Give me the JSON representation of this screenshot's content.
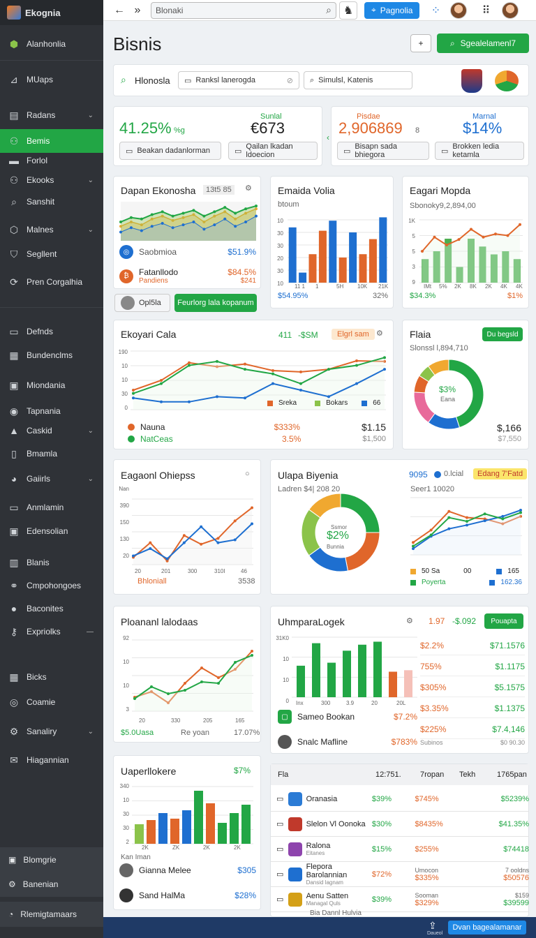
{
  "app": {
    "title": "Ekognia"
  },
  "sidebar": {
    "header": "Alanhonlia",
    "items": [
      {
        "label": "MUaps",
        "icon": "compass-icon",
        "y": 97
      },
      {
        "label": "Radans",
        "icon": "chart-icon",
        "y": 148,
        "chev": true
      },
      {
        "label": "Bemis",
        "icon": "people-icon",
        "y": 185,
        "active": true
      },
      {
        "label": "Forlol",
        "icon": "folder-icon",
        "y": 213
      },
      {
        "label": "Ekooks",
        "icon": "users-icon",
        "y": 241,
        "chev": true
      },
      {
        "label": "Sanshit",
        "icon": "search-icon",
        "y": 272
      },
      {
        "label": "Malnes",
        "icon": "box-icon",
        "y": 312,
        "chev": true
      },
      {
        "label": "Segllent",
        "icon": "shield-icon",
        "y": 347
      },
      {
        "label": "Pren Corgalhia",
        "icon": "refresh-icon",
        "y": 387
      },
      {
        "label": "Defnds",
        "icon": "card-icon",
        "y": 458
      },
      {
        "label": "Bundenclms",
        "icon": "grid-icon",
        "y": 492
      },
      {
        "label": "Miondania",
        "icon": "monitor-icon",
        "y": 535
      },
      {
        "label": "Tapnania",
        "icon": "chrome-icon",
        "y": 572
      },
      {
        "label": "Caskid",
        "icon": "warning-icon",
        "y": 600,
        "chev": true
      },
      {
        "label": "Bmamla",
        "icon": "doc-icon",
        "y": 633
      },
      {
        "label": "Gaiirls",
        "icon": "avatar-icon",
        "y": 669,
        "chev": true
      },
      {
        "label": "Anmlamin",
        "icon": "card-icon",
        "y": 710
      },
      {
        "label": "Edensolian",
        "icon": "monitor-icon",
        "y": 744
      },
      {
        "label": "Blanis",
        "icon": "bars-icon",
        "y": 789
      },
      {
        "label": "Cmpohongoes",
        "icon": "link-icon",
        "y": 822
      },
      {
        "label": "Baconites",
        "icon": "pin-icon",
        "y": 855
      },
      {
        "label": "Expriolks",
        "icon": "key-icon",
        "y": 888,
        "minus": true
      },
      {
        "label": "Bicks",
        "icon": "grid-icon",
        "y": 953
      },
      {
        "label": "Coamie",
        "icon": "target-icon",
        "y": 989
      },
      {
        "label": "Sanaliry",
        "icon": "gear-icon",
        "y": 1031,
        "chev": true
      },
      {
        "label": "Hiagannian",
        "icon": "mail-icon",
        "y": 1072
      }
    ],
    "bottom": [
      {
        "label": "Blomgrie",
        "y": 1232
      },
      {
        "label": "Banenian",
        "y": 1267
      },
      {
        "label": "Rlemigtamaars",
        "y": 1310
      }
    ]
  },
  "topbar": {
    "search": "Blonaki",
    "pill": "Pagnolia"
  },
  "page": {
    "title": "Bisnis",
    "action": "Sgealelamenl7"
  },
  "filters": {
    "country": "Hlonosla",
    "f1": "Ranksl lanerogda",
    "f2": "Simulsl, Katenis"
  },
  "kpis": {
    "k1": "41.25%",
    "k1b": "%g",
    "k2lab": "Sunlal",
    "k2": "€673",
    "b1": "Beakan dadanlorman",
    "b2": "Qailan lkadan ldoecion",
    "k3lab": "Pisdae",
    "k3": "2,906869",
    "k3b": "8",
    "k4lab": "Marnal",
    "k4": "$14%",
    "b3": "Bisapn sada bhiegora",
    "b4": "Brokken ledia ketamla"
  },
  "p1": {
    "title": "Dapan Ekonosha",
    "tag": "13t5 85",
    "r1": "Saobmioa",
    "r1v": "$51.9%",
    "r2": "Fatanllodo",
    "r2s": "Pandiens",
    "r2v": "$84.5%",
    "r2v2": "$241",
    "chip": "Opl5la",
    "btn": "Feurlorg lala kopanum"
  },
  "p2": {
    "title": "Emaida Volia",
    "sub": "btoum",
    "f1": "$54.95%",
    "f2": "32%",
    "yt": [
      "10",
      "30",
      "30",
      "20",
      "30",
      "10"
    ],
    "xt": [
      "11 1",
      "1",
      "5H",
      "10K",
      "21K"
    ],
    "chart_data": {
      "type": "bar",
      "categories": [
        "1",
        "2",
        "3",
        "4",
        "5",
        "6",
        "7",
        "8",
        "9",
        "10"
      ],
      "values": [
        66,
        12,
        34,
        62,
        74,
        30,
        60,
        34,
        52,
        78
      ],
      "colors": [
        "#1e6fd0",
        "#1e6fd0",
        "#e0662a",
        "#e0662a",
        "#1e6fd0",
        "#e0662a",
        "#1e6fd0",
        "#e0662a",
        "#e0662a",
        "#1e6fd0"
      ]
    }
  },
  "p3": {
    "title": "Eagari Mopda",
    "sub": "Sbonoky9,2,894,00",
    "f1": "$34.3%",
    "f2": "$1%",
    "xt": [
      "IMt",
      "5%",
      "2K",
      "8K",
      "2K",
      "4K",
      "4K"
    ],
    "yt": [
      "1K",
      "5",
      "5",
      "3",
      "9"
    ],
    "chart_data": {
      "type": "bar",
      "values": [
        30,
        40,
        56,
        20,
        56,
        46,
        36,
        40,
        30
      ],
      "line": [
        40,
        58,
        48,
        55,
        68,
        58,
        62,
        60,
        74
      ]
    }
  },
  "p4": {
    "title": "Ekoyari Cala",
    "v1": "411",
    "v2": "-$SM",
    "badge": "Elgrl sam",
    "yt": [
      "190",
      "10",
      "10",
      "30",
      "0"
    ],
    "leg": [
      "Sreka",
      "Bokars",
      "66"
    ],
    "r1": "Nauna",
    "r1v": "$333%",
    "r1v2": "$1.15",
    "r2": "NatCeas",
    "r2v": "3.5%",
    "r2v2": "$1,500",
    "chart_data": {
      "type": "line",
      "series": [
        {
          "name": "s1",
          "color": "#e0662a",
          "values": [
            30,
            45,
            72,
            66,
            70,
            60,
            58,
            62,
            75,
            74
          ]
        },
        {
          "name": "s2",
          "color": "#22a645",
          "values": [
            25,
            40,
            68,
            74,
            62,
            55,
            40,
            62,
            68,
            80
          ]
        },
        {
          "name": "s3",
          "color": "#1e6fd0",
          "values": [
            18,
            12,
            12,
            20,
            18,
            40,
            30,
            20,
            40,
            62
          ]
        }
      ]
    }
  },
  "p5": {
    "title": "Flaia",
    "btn": "Du begsld",
    "sub": "Slonssl l,894,710",
    "center": "$3%",
    "center2": "Eana",
    "v": "$,166",
    "v2": "$7,550",
    "chart_data": {
      "type": "pie",
      "values": [
        45,
        15,
        16,
        8,
        6,
        10
      ],
      "colors": [
        "#22a645",
        "#1e6fd0",
        "#e86a9a",
        "#e0662a",
        "#8bc34a",
        "#f0a830"
      ]
    }
  },
  "p6": {
    "title": "Eagaonl Ohiepss",
    "yt": [
      "Nan",
      "390",
      "150",
      "130",
      "20"
    ],
    "xt": [
      "20",
      "201",
      "300",
      "310I",
      "46"
    ],
    "f1": "Bhloniall",
    "f2": "3538",
    "chart_data": {
      "type": "line",
      "series": [
        {
          "name": "a",
          "color": "#e0662a",
          "values": [
            10,
            30,
            5,
            40,
            28,
            36,
            60,
            78
          ]
        },
        {
          "name": "b",
          "color": "#1e6fd0",
          "values": [
            12,
            22,
            8,
            30,
            52,
            30,
            34,
            56
          ]
        }
      ]
    }
  },
  "p7": {
    "title": "Ulapa Biyenia",
    "sub": "Ladren $4| 208 20",
    "v1": "9095",
    "v2": "0.lcial",
    "badge": "Edang 7'Fatd",
    "c1": "Ssmor",
    "c2": "$2%",
    "c3": "Bunnia",
    "lsub": "Seer1 10020",
    "leg": [
      "50 Sa",
      "00",
      "165",
      "50"
    ],
    "f1": "Poyerta",
    "f2": "162.36",
    "chart_data": {
      "type": "pie",
      "values": [
        25,
        22,
        18,
        20,
        15
      ],
      "colors": [
        "#22a645",
        "#e0662a",
        "#1e6fd0",
        "#8bc34a",
        "#f0a830"
      ]
    },
    "lines": [
      {
        "color": "#e0662a",
        "values": [
          20,
          40,
          70,
          60,
          58,
          50,
          62
        ]
      },
      {
        "color": "#1e6fd0",
        "values": [
          10,
          30,
          42,
          48,
          55,
          62,
          72
        ]
      },
      {
        "color": "#22a645",
        "values": [
          14,
          32,
          60,
          54,
          66,
          58,
          68
        ]
      }
    ]
  },
  "p8": {
    "title": "Ploananl lalodaas",
    "yt": [
      "92",
      "10",
      "10",
      "3"
    ],
    "xt": [
      "20",
      "330",
      "205",
      "165"
    ],
    "f1": "$5.0Uasa",
    "f2": "Re yoan",
    "f3": "17.07%",
    "chart_data": {
      "type": "line",
      "series": [
        {
          "name": "a",
          "color": "#e0662a",
          "values": [
            20,
            28,
            12,
            40,
            62,
            48,
            60,
            86
          ]
        },
        {
          "name": "b",
          "color": "#22a645",
          "values": [
            18,
            35,
            25,
            30,
            42,
            40,
            70,
            80
          ]
        }
      ]
    }
  },
  "p9": {
    "title": "UhmparaLogek",
    "v1": "1.97",
    "v2": "-$.092",
    "btn": "Pouapta",
    "yt": [
      "31K0",
      "10",
      "10",
      "0"
    ],
    "xt": [
      "Inx",
      "300",
      "3.9",
      "20",
      "20L"
    ],
    "r1": "Sameo Bookan",
    "r1v": "$7.2%",
    "r1b": "Subinos",
    "r1c": "$0 90.30",
    "r2": "Snalc Mafline",
    "r2v": "$783%",
    "chart_data": {
      "type": "bar",
      "values": [
        42,
        72,
        46,
        62,
        70,
        74,
        34,
        36
      ],
      "colors": [
        "#22a645",
        "#22a645",
        "#22a645",
        "#22a645",
        "#22a645",
        "#22a645",
        "#e0662a",
        "#f5c0b8"
      ]
    },
    "table": [
      [
        "$2.2%",
        "$71.1576"
      ],
      [
        "755%",
        "$1.1175"
      ],
      [
        "$305%",
        "$5.1575"
      ],
      [
        "$3.35%",
        "$1.1375"
      ],
      [
        "$225%",
        "$7.4,146"
      ]
    ]
  },
  "p10": {
    "title": "Uaperllokere",
    "badge": "$7%",
    "yt": [
      "340",
      "10",
      "30",
      "30",
      "2"
    ],
    "xt": [
      "2K",
      "ZK",
      "2K",
      "2K"
    ],
    "f0": "Kan Iman",
    "r1": "Gianna Melee",
    "r1v": "$305",
    "r2": "Sand HalMa",
    "r2v": "$28%",
    "chart_data": {
      "type": "bar",
      "values": [
        28,
        34,
        44,
        36,
        48,
        76,
        58,
        30,
        44,
        56
      ],
      "colors": [
        "#8bc34a",
        "#e0662a",
        "#1e6fd0",
        "#e0662a",
        "#1e6fd0",
        "#22a645",
        "#e0662a",
        "#22a645",
        "#22a645",
        "#22a645"
      ]
    }
  },
  "p11": {
    "head": [
      "Fla",
      "12:751.",
      "7ropan",
      "Tekh",
      "1765pan"
    ],
    "rows": [
      {
        "n": "Oranasia",
        "a": "$39%",
        "b": "$745%",
        "c": "$5239%",
        "ic": "#2b7bd5"
      },
      {
        "n": "Slelon Vl Oonoka",
        "a": "$30%",
        "b": "$8435%",
        "c": "$41.35%",
        "ic": "#c0392b"
      },
      {
        "n": "Ralona",
        "s": "Eitanes",
        "a": "$15%",
        "b": "$255%",
        "c": "$74418",
        "ic": "#8e44ad"
      },
      {
        "n": "Flepora Barolannian",
        "s": "Dansid lagnam",
        "a": "$72%",
        "b": "$335%",
        "c": "$50576",
        "h": "Umocon",
        "h2": "7 ooldns",
        "ic": "#1e6fd0"
      },
      {
        "n": "Aenu Satten",
        "s": "Managal Quls",
        "a": "$39%",
        "b": "$329%",
        "c": "$39599",
        "h": "Sooman",
        "h2": "$159",
        "ic": "#d4a017"
      }
    ],
    "foot": "Bia Dannl Hulvia"
  },
  "bottombar": {
    "btn": "Dvan bagealamanar",
    "ic": "Daueol"
  }
}
